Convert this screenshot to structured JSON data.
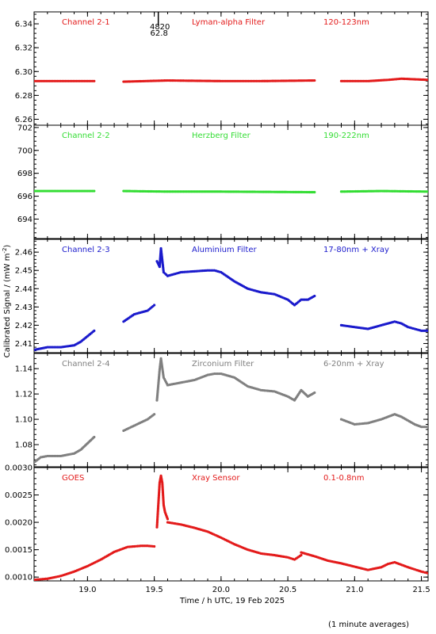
{
  "figure": {
    "xlabel": "Time / h UTC, 19 Feb 2025",
    "ylabel": "Calibrated Signal / (mW m",
    "ylabel_sup": "-2",
    "ylabel_close": ")",
    "footnote": "(1 minute averages)",
    "xlim": [
      18.6,
      21.55
    ],
    "xticks": [
      19.0,
      19.5,
      20.0,
      20.5,
      21.0,
      21.5
    ],
    "xtick_labels": [
      "19.0",
      "19.5",
      "20.0",
      "20.5",
      "21.0",
      "21.5"
    ],
    "marker_annotation": {
      "x": 19.53,
      "line1": "4820",
      "line2": "62.8"
    }
  },
  "chart_data": [
    {
      "type": "scatter",
      "panel": "channel-2-1",
      "labels": [
        "Channel 2-1",
        "Lyman-alpha Filter",
        "120-123nm"
      ],
      "color": "#e31a1a",
      "ylim": [
        6.255,
        6.35
      ],
      "yticks": [
        6.26,
        6.28,
        6.3,
        6.32,
        6.34
      ],
      "ytick_labels": [
        "6.26",
        "6.28",
        "6.30",
        "6.32",
        "6.34"
      ],
      "segments": [
        {
          "x": [
            18.6,
            18.8,
            19.05
          ],
          "y": [
            6.292,
            6.292,
            6.292
          ]
        },
        {
          "x": [
            19.27,
            19.6,
            20.0,
            20.3,
            20.7
          ],
          "y": [
            6.2915,
            6.2925,
            6.292,
            6.292,
            6.2925
          ]
        },
        {
          "x": [
            20.9,
            21.1,
            21.25,
            21.35,
            21.55
          ],
          "y": [
            6.292,
            6.292,
            6.293,
            6.294,
            6.293
          ]
        }
      ]
    },
    {
      "type": "scatter",
      "panel": "channel-2-2",
      "labels": [
        "Channel 2-2",
        "Herzberg Filter",
        "190-222nm"
      ],
      "color": "#33dd33",
      "ylim": [
        692.3,
        702.2
      ],
      "yticks": [
        694,
        696,
        698,
        700,
        702
      ],
      "ytick_labels": [
        "694",
        "696",
        "698",
        "700",
        "702"
      ],
      "segments": [
        {
          "x": [
            18.6,
            19.05
          ],
          "y": [
            696.45,
            696.45
          ]
        },
        {
          "x": [
            19.27,
            19.6,
            20.0,
            20.7
          ],
          "y": [
            696.45,
            696.4,
            696.4,
            696.35
          ]
        },
        {
          "x": [
            20.9,
            21.2,
            21.55
          ],
          "y": [
            696.4,
            696.45,
            696.4
          ]
        }
      ]
    },
    {
      "type": "scatter",
      "panel": "channel-2-3",
      "labels": [
        "Channel 2-3",
        "Aluminium Filter",
        "17-80nm + Xray"
      ],
      "color": "#1a1acc",
      "ylim": [
        2.405,
        2.467
      ],
      "yticks": [
        2.41,
        2.42,
        2.43,
        2.44,
        2.45,
        2.46
      ],
      "ytick_labels": [
        "2.41",
        "2.42",
        "2.43",
        "2.44",
        "2.45",
        "2.46"
      ],
      "segments": [
        {
          "x": [
            18.6,
            18.7,
            18.8,
            18.9,
            18.95,
            19.0,
            19.05
          ],
          "y": [
            2.4065,
            2.408,
            2.408,
            2.409,
            2.411,
            2.414,
            2.417
          ]
        },
        {
          "x": [
            19.27,
            19.35,
            19.45,
            19.5
          ],
          "y": [
            2.422,
            2.426,
            2.428,
            2.431
          ]
        },
        {
          "x": [
            19.52,
            19.54,
            19.55,
            19.57,
            19.6
          ],
          "y": [
            2.455,
            2.452,
            2.462,
            2.449,
            2.447
          ]
        },
        {
          "x": [
            19.6,
            19.7,
            19.8,
            19.9,
            19.95,
            20.0,
            20.1,
            20.2,
            20.3,
            20.4,
            20.5,
            20.55,
            20.6,
            20.65,
            20.7
          ],
          "y": [
            2.447,
            2.449,
            2.4495,
            2.45,
            2.45,
            2.449,
            2.444,
            2.44,
            2.438,
            2.437,
            2.434,
            2.431,
            2.434,
            2.434,
            2.436
          ]
        },
        {
          "x": [
            20.9,
            21.0,
            21.1,
            21.2,
            21.3,
            21.35,
            21.4,
            21.45,
            21.5,
            21.55
          ],
          "y": [
            2.42,
            2.419,
            2.418,
            2.42,
            2.422,
            2.421,
            2.419,
            2.418,
            2.417,
            2.417
          ]
        }
      ]
    },
    {
      "type": "scatter",
      "panel": "channel-2-4",
      "labels": [
        "Channel 2-4",
        "Zirconium Filter",
        "6-20nm + Xray"
      ],
      "color": "#808080",
      "ylim": [
        1.0625,
        1.152
      ],
      "yticks": [
        1.08,
        1.1,
        1.12,
        1.14
      ],
      "ytick_labels": [
        "1.08",
        "1.10",
        "1.12",
        "1.14"
      ],
      "segments": [
        {
          "x": [
            18.6,
            18.65,
            18.7,
            18.8,
            18.9,
            18.95,
            19.0,
            19.05
          ],
          "y": [
            1.066,
            1.07,
            1.071,
            1.071,
            1.073,
            1.076,
            1.081,
            1.086
          ]
        },
        {
          "x": [
            19.27,
            19.35,
            19.45,
            19.5
          ],
          "y": [
            1.091,
            1.095,
            1.1,
            1.104
          ]
        },
        {
          "x": [
            19.52,
            19.54,
            19.55,
            19.57,
            19.6
          ],
          "y": [
            1.115,
            1.139,
            1.148,
            1.133,
            1.127
          ]
        },
        {
          "x": [
            19.6,
            19.7,
            19.8,
            19.9,
            19.95,
            20.0,
            20.1,
            20.2,
            20.3,
            20.4,
            20.5,
            20.55,
            20.6,
            20.65,
            20.7
          ],
          "y": [
            1.127,
            1.129,
            1.131,
            1.135,
            1.136,
            1.136,
            1.133,
            1.126,
            1.123,
            1.122,
            1.118,
            1.115,
            1.123,
            1.118,
            1.121
          ]
        },
        {
          "x": [
            20.9,
            21.0,
            21.1,
            21.2,
            21.3,
            21.35,
            21.4,
            21.45,
            21.5,
            21.55
          ],
          "y": [
            1.1,
            1.096,
            1.097,
            1.1,
            1.104,
            1.102,
            1.099,
            1.096,
            1.094,
            1.094
          ]
        }
      ]
    },
    {
      "type": "scatter",
      "panel": "goes",
      "labels": [
        "GOES",
        "Xray Sensor",
        "0.1-0.8nm"
      ],
      "color": "#e31a1a",
      "ylim": [
        0.00093,
        0.003
      ],
      "yticks": [
        0.001,
        0.0015,
        0.002,
        0.0025,
        0.003
      ],
      "ytick_labels": [
        "0.0010",
        "0.0015",
        "0.0020",
        "0.0025",
        "0.0030"
      ],
      "segments": [
        {
          "x": [
            18.6,
            18.7,
            18.8,
            18.9,
            19.0,
            19.1,
            19.2,
            19.3,
            19.4,
            19.45,
            19.5
          ],
          "y": [
            0.00095,
            0.00097,
            0.00102,
            0.0011,
            0.0012,
            0.00132,
            0.00146,
            0.00155,
            0.00157,
            0.00157,
            0.00156
          ]
        },
        {
          "x": [
            19.52,
            19.54,
            19.55,
            19.56,
            19.57,
            19.58,
            19.6
          ],
          "y": [
            0.00191,
            0.00272,
            0.00285,
            0.00272,
            0.00232,
            0.00219,
            0.00206
          ]
        },
        {
          "x": [
            19.6,
            19.7,
            19.8,
            19.9,
            20.0,
            20.1,
            20.2,
            20.3,
            20.4,
            20.5,
            20.55,
            20.6
          ],
          "y": [
            0.002,
            0.00196,
            0.0019,
            0.00183,
            0.00172,
            0.0016,
            0.0015,
            0.00143,
            0.0014,
            0.00136,
            0.00132,
            0.0014
          ]
        },
        {
          "x": [
            20.6,
            20.7,
            20.8,
            20.9,
            21.0,
            21.1,
            21.2,
            21.25,
            21.3,
            21.4,
            21.5,
            21.55
          ],
          "y": [
            0.00145,
            0.00138,
            0.0013,
            0.00125,
            0.00119,
            0.00113,
            0.00118,
            0.00124,
            0.00127,
            0.00118,
            0.0011,
            0.00107
          ]
        }
      ]
    }
  ]
}
